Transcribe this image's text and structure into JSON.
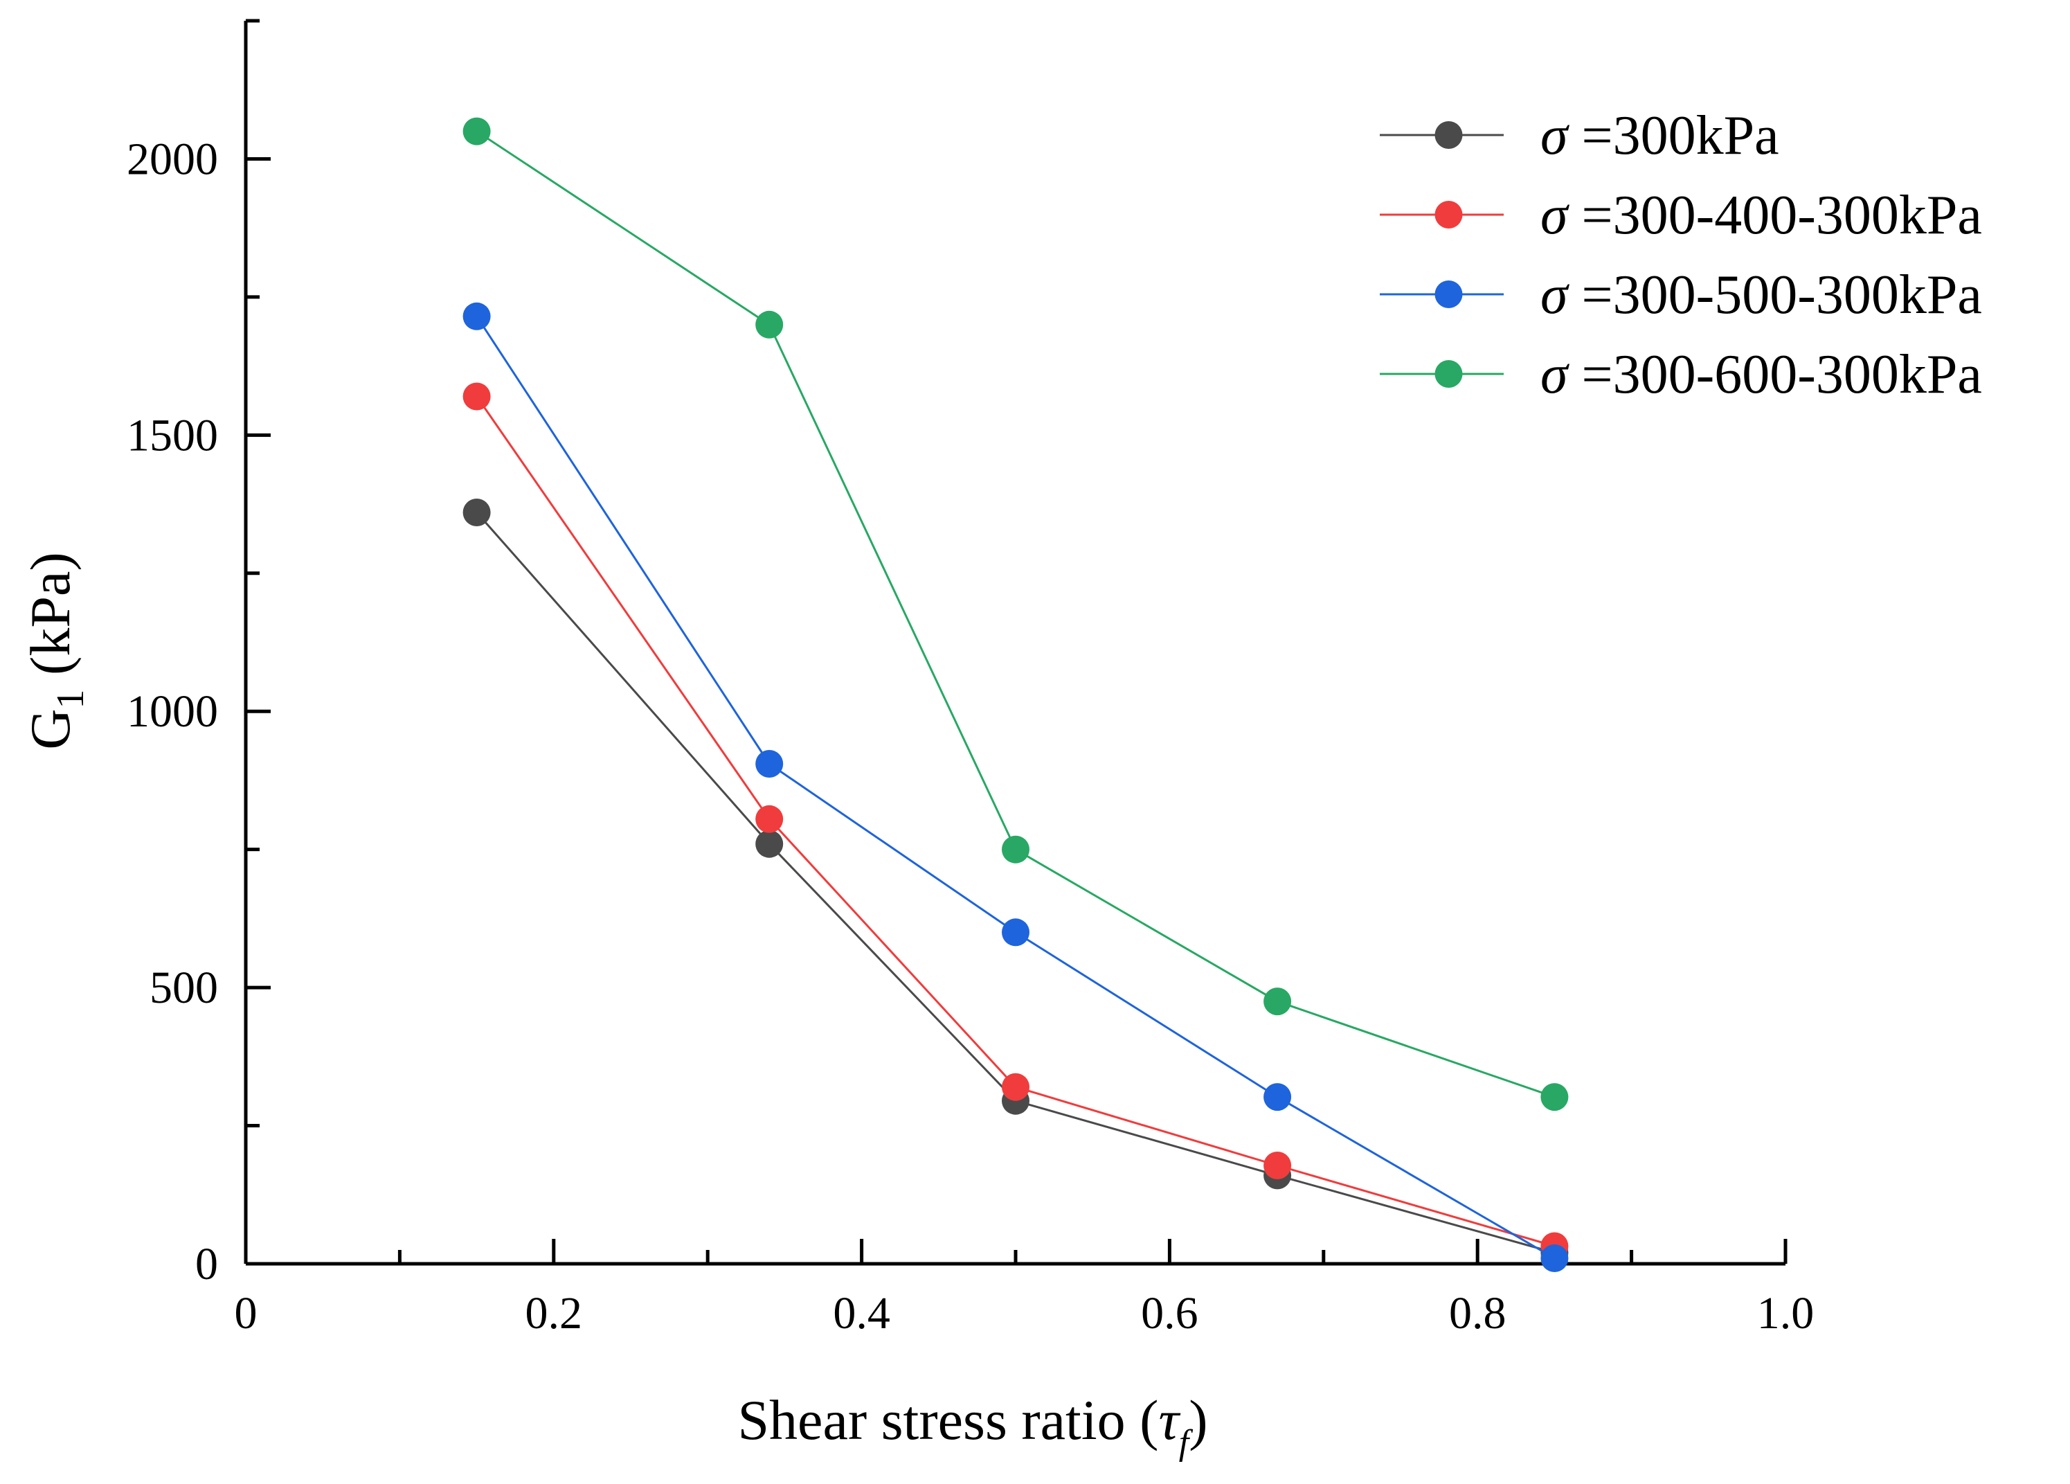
{
  "chart_data": {
    "type": "line",
    "title": "",
    "xlabel": {
      "prefix": "Shear stress ratio (",
      "symbol": "τ",
      "subscript": "f",
      "suffix": ")"
    },
    "ylabel": {
      "main": "G",
      "subscript": "1",
      "unit": " (kPa)"
    },
    "xlim": [
      0,
      1.0
    ],
    "ylim": [
      0,
      2250
    ],
    "x_ticks": [
      {
        "value": 0,
        "label": "0"
      },
      {
        "value": 0.2,
        "label": "0.2"
      },
      {
        "value": 0.4,
        "label": "0.4"
      },
      {
        "value": 0.6,
        "label": "0.6"
      },
      {
        "value": 0.8,
        "label": "0.8"
      },
      {
        "value": 1.0,
        "label": "1.0"
      }
    ],
    "x_minor_ticks": [
      0.1,
      0.3,
      0.5,
      0.7,
      0.9
    ],
    "y_ticks": [
      {
        "value": 0,
        "label": "0"
      },
      {
        "value": 500,
        "label": "500"
      },
      {
        "value": 1000,
        "label": "1000"
      },
      {
        "value": 1500,
        "label": "1500"
      },
      {
        "value": 2000,
        "label": "2000"
      }
    ],
    "y_minor_ticks": [
      250,
      750,
      1250,
      1750,
      2250
    ],
    "grid": false,
    "legend_position": "top-right",
    "series": [
      {
        "name_symbol": "σ",
        "name_text": " =300kPa",
        "color": "#4a4a4a",
        "x": [
          0.15,
          0.34,
          0.5,
          0.67,
          0.85
        ],
        "y": [
          1360,
          760,
          295,
          160,
          20
        ]
      },
      {
        "name_symbol": "σ",
        "name_text": " =300-400-300kPa",
        "color": "#f03c3c",
        "x": [
          0.15,
          0.34,
          0.5,
          0.67,
          0.85
        ],
        "y": [
          1570,
          805,
          320,
          178,
          32
        ]
      },
      {
        "name_symbol": "σ",
        "name_text": " =300-500-300kPa",
        "color": "#1e64dc",
        "x": [
          0.15,
          0.34,
          0.5,
          0.67,
          0.85
        ],
        "y": [
          1715,
          905,
          600,
          302,
          10
        ]
      },
      {
        "name_symbol": "σ",
        "name_text": " =300-600-300kPa",
        "color": "#28a864",
        "x": [
          0.15,
          0.34,
          0.5,
          0.67,
          0.85
        ],
        "y": [
          2050,
          1700,
          750,
          475,
          302
        ]
      }
    ]
  }
}
